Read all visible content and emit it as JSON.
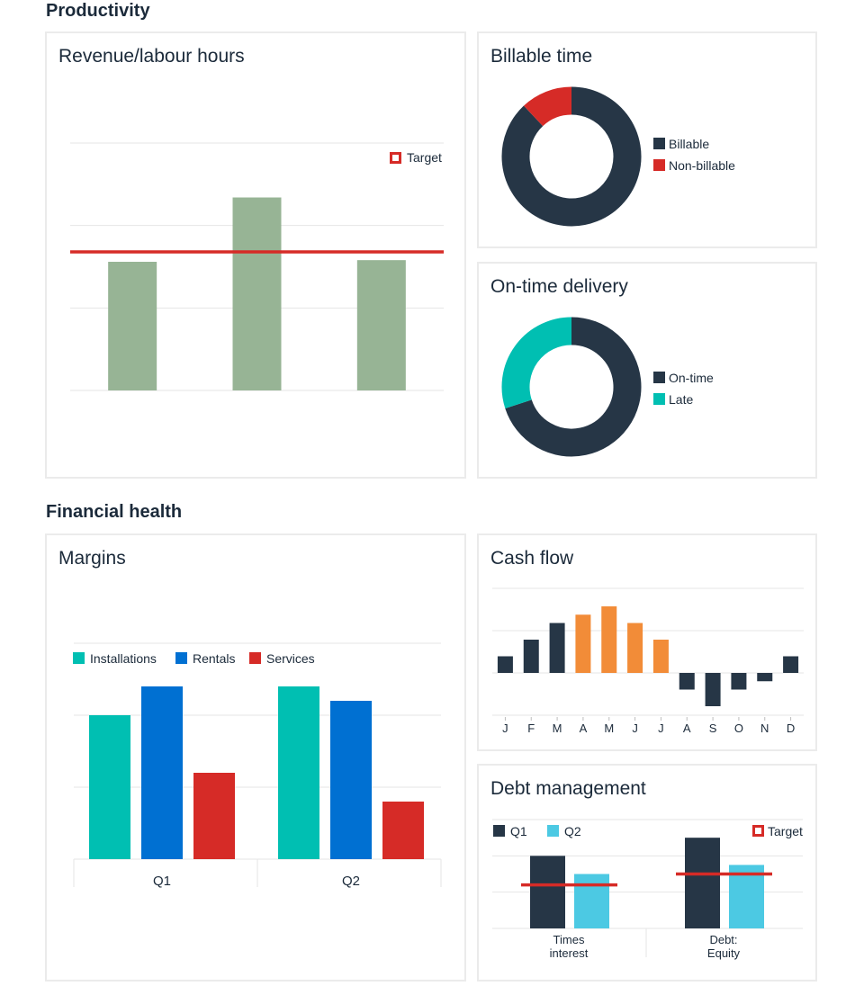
{
  "sections": {
    "productivity": "Productivity",
    "financial_health": "Financial health"
  },
  "colors": {
    "dark": "#263646",
    "red": "#d62b27",
    "sage": "#97b495",
    "teal": "#00bfb2",
    "blue": "#0070d2",
    "orange": "#f28c38",
    "sky": "#4cc9e3",
    "grid": "#e6e6e6"
  },
  "chart_data": [
    {
      "id": "revenue",
      "type": "bar",
      "title": "Revenue/labour hours",
      "categories": [
        "",
        "",
        ""
      ],
      "values": [
        78,
        117,
        79
      ],
      "target": 84,
      "ylim": [
        0,
        150
      ],
      "legend": [
        "Target"
      ],
      "legend_position": "top-right",
      "grid": true
    },
    {
      "id": "billable",
      "type": "pie",
      "title": "Billable time",
      "labels": [
        "Billable",
        "Non-billable"
      ],
      "values": [
        88,
        12
      ],
      "legend_position": "right"
    },
    {
      "id": "ontime",
      "type": "pie",
      "title": "On-time delivery",
      "labels": [
        "On-time",
        "Late"
      ],
      "values": [
        70,
        30
      ],
      "legend_position": "right"
    },
    {
      "id": "margins",
      "type": "bar",
      "title": "Margins",
      "categories": [
        "Q1",
        "Q2"
      ],
      "series": [
        {
          "name": "Installations",
          "values": [
            80,
            96
          ]
        },
        {
          "name": "Rentals",
          "values": [
            96,
            88
          ]
        },
        {
          "name": "Services",
          "values": [
            48,
            32
          ]
        }
      ],
      "ylim": [
        0,
        120
      ],
      "legend_position": "top-left",
      "grid": true
    },
    {
      "id": "cashflow",
      "type": "bar",
      "title": "Cash flow",
      "categories": [
        "J",
        "F",
        "M",
        "A",
        "M",
        "J",
        "J",
        "A",
        "S",
        "O",
        "N",
        "D"
      ],
      "values": [
        1,
        2,
        3,
        3.5,
        4,
        3,
        2,
        -1,
        -2,
        -1,
        -0.5,
        1
      ],
      "ylim": [
        -3,
        5
      ],
      "grid": true
    },
    {
      "id": "debt",
      "type": "bar",
      "title": "Debt management",
      "categories": [
        "Times\ninterest",
        "Debt:\nEquity"
      ],
      "series": [
        {
          "name": "Q1",
          "values": [
            2,
            2.5
          ]
        },
        {
          "name": "Q2",
          "values": [
            1.5,
            1.75
          ]
        }
      ],
      "targets": [
        1.2,
        1.5
      ],
      "target_label": "Target",
      "ylim": [
        0,
        3
      ],
      "legend_position": "top",
      "grid": true
    }
  ]
}
